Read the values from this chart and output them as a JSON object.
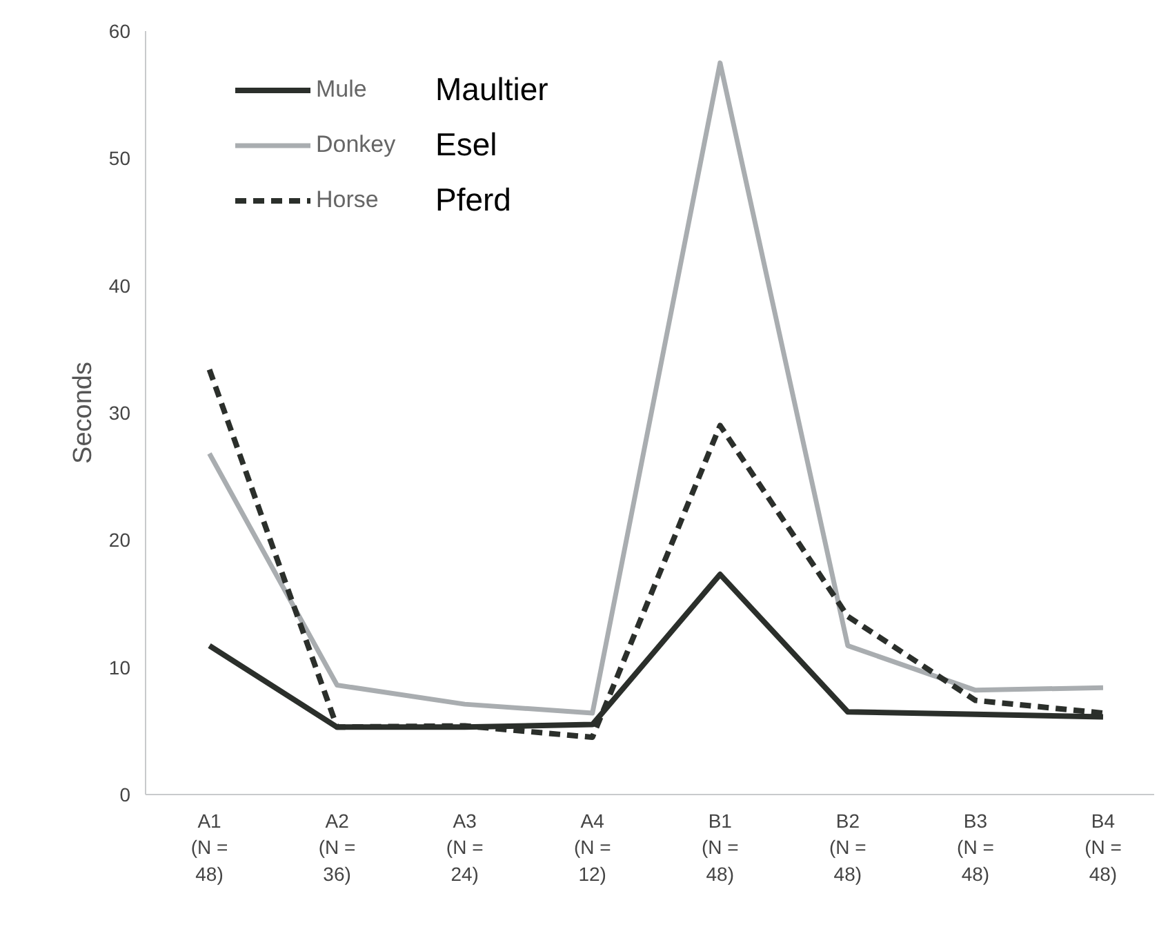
{
  "chart_data": {
    "type": "line",
    "ylabel": "Seconds",
    "categories": [
      "A1\n(N =\n48)",
      "A2\n(N =\n36)",
      "A3\n(N =\n24)",
      "A4\n(N =\n12)",
      "B1\n(N =\n48)",
      "B2\n(N =\n48)",
      "B3\n(N =\n48)",
      "B4\n(N =\n48)"
    ],
    "series": [
      {
        "name": "Mule",
        "color": "#2b2f2b",
        "line_style": "solid",
        "values": [
          11.7,
          5.3,
          5.3,
          5.5,
          17.3,
          6.5,
          6.3,
          6.1
        ]
      },
      {
        "name": "Donkey",
        "color": "#a9adb0",
        "line_style": "solid",
        "values": [
          26.8,
          8.6,
          7.1,
          6.4,
          57.5,
          11.7,
          8.2,
          8.4
        ]
      },
      {
        "name": "Horse",
        "color": "#2b2f2b",
        "line_style": "dashed",
        "values": [
          33.4,
          5.3,
          5.4,
          4.5,
          29.0,
          14.0,
          7.4,
          6.4
        ]
      }
    ],
    "ylim": [
      0,
      60
    ],
    "yticks": [
      0,
      10,
      20,
      30,
      40,
      50,
      60
    ],
    "grid": false,
    "legend": "top left",
    "marker": "none",
    "annotations": [
      "Maultier",
      "Esel",
      "Pferd"
    ]
  }
}
